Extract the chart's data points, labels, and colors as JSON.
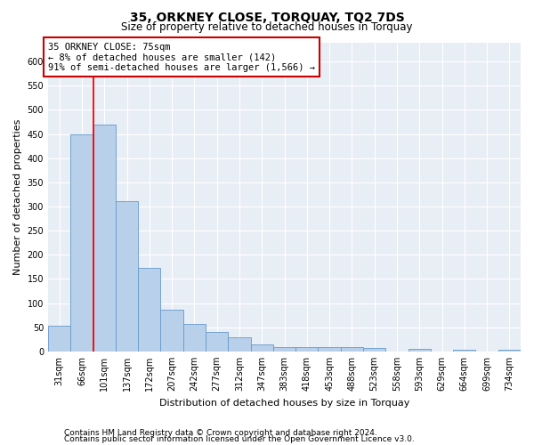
{
  "title": "35, ORKNEY CLOSE, TORQUAY, TQ2 7DS",
  "subtitle": "Size of property relative to detached houses in Torquay",
  "xlabel": "Distribution of detached houses by size in Torquay",
  "ylabel": "Number of detached properties",
  "categories": [
    "31sqm",
    "66sqm",
    "101sqm",
    "137sqm",
    "172sqm",
    "207sqm",
    "242sqm",
    "277sqm",
    "312sqm",
    "347sqm",
    "383sqm",
    "418sqm",
    "453sqm",
    "488sqm",
    "523sqm",
    "558sqm",
    "593sqm",
    "629sqm",
    "664sqm",
    "699sqm",
    "734sqm"
  ],
  "values": [
    53,
    450,
    470,
    311,
    172,
    87,
    56,
    41,
    30,
    15,
    8,
    8,
    8,
    8,
    7,
    0,
    5,
    0,
    3,
    0,
    4
  ],
  "bar_color": "#b8d0ea",
  "bar_edge_color": "#6699cc",
  "red_line_x": 1.5,
  "annotation_line1": "35 ORKNEY CLOSE: 75sqm",
  "annotation_line2": "← 8% of detached houses are smaller (142)",
  "annotation_line3": "91% of semi-detached houses are larger (1,566) →",
  "annotation_box_color": "#ffffff",
  "annotation_box_edge_color": "#cc0000",
  "ylim": [
    0,
    640
  ],
  "yticks": [
    0,
    50,
    100,
    150,
    200,
    250,
    300,
    350,
    400,
    450,
    500,
    550,
    600
  ],
  "footer_line1": "Contains HM Land Registry data © Crown copyright and database right 2024.",
  "footer_line2": "Contains public sector information licensed under the Open Government Licence v3.0.",
  "plot_bg_color": "#e8eef5",
  "title_fontsize": 10,
  "subtitle_fontsize": 8.5,
  "axis_label_fontsize": 8,
  "tick_fontsize": 7,
  "footer_fontsize": 6.5,
  "annotation_fontsize": 7.5
}
